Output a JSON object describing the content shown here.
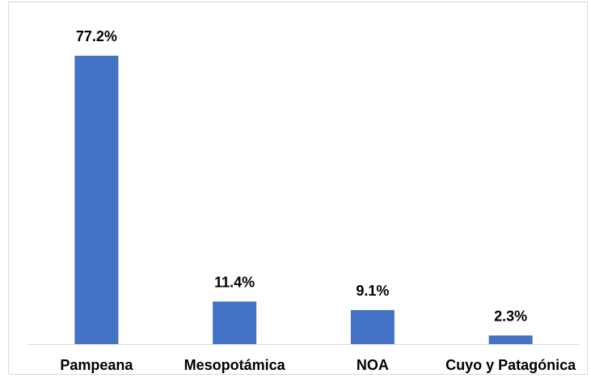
{
  "chart_data": {
    "type": "bar",
    "title": "",
    "xlabel": "",
    "ylabel": "",
    "categories": [
      "Pampeana",
      "Mesopotámica",
      "NOA",
      "Cuyo y Patagónica"
    ],
    "values": [
      77.2,
      11.4,
      9.1,
      2.3
    ],
    "data_labels": [
      "77.2%",
      "11.4%",
      "9.1%",
      "2.3%"
    ],
    "ylim": [
      0,
      80
    ],
    "grid": false,
    "legend": "none",
    "bar_color": "#4472C4",
    "axis_color": "#d9d9d9"
  }
}
